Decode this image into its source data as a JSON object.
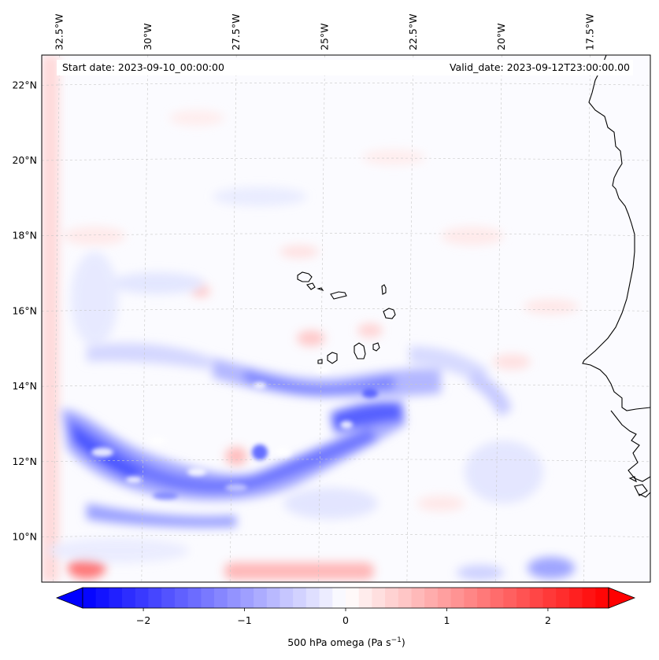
{
  "map": {
    "lon_range": [
      -33.0,
      -15.8
    ],
    "lat_range": [
      8.8,
      22.8
    ],
    "lon_ticks": [
      {
        "value": -32.5,
        "label": "32.5°W"
      },
      {
        "value": -30.0,
        "label": "30°W"
      },
      {
        "value": -27.5,
        "label": "27.5°W"
      },
      {
        "value": -25.0,
        "label": "25°W"
      },
      {
        "value": -22.5,
        "label": "22.5°W"
      },
      {
        "value": -20.0,
        "label": "20°W"
      },
      {
        "value": -17.5,
        "label": "17.5°W"
      }
    ],
    "lat_ticks": [
      {
        "value": 10,
        "label": "10°N"
      },
      {
        "value": 12,
        "label": "12°N"
      },
      {
        "value": 14,
        "label": "14°N"
      },
      {
        "value": 16,
        "label": "16°N"
      },
      {
        "value": 18,
        "label": "18°N"
      },
      {
        "value": 20,
        "label": "20°N"
      },
      {
        "value": 22,
        "label": "22°N"
      }
    ],
    "start_date_text": "Start date: 2023-09-10_00:00:00",
    "valid_date_text": "Valid_date: 2023-09-12T23:00:00.00",
    "gridlines": true,
    "colors": {
      "negative": "#0000ff",
      "zero": "#ffffff",
      "positive": "#ff0000",
      "coast": "#000000"
    }
  },
  "colorbar": {
    "vmin": -2.6,
    "vmax": 2.6,
    "ticks": [
      {
        "value": -2,
        "label": "−2"
      },
      {
        "value": -1,
        "label": "−1"
      },
      {
        "value": 0,
        "label": "0"
      },
      {
        "value": 1,
        "label": "1"
      },
      {
        "value": 2,
        "label": "2"
      }
    ],
    "label_main": "500 hPa omega (Pa s",
    "label_sup": "−1",
    "label_end": ")",
    "extend": "both",
    "levels": 40
  }
}
